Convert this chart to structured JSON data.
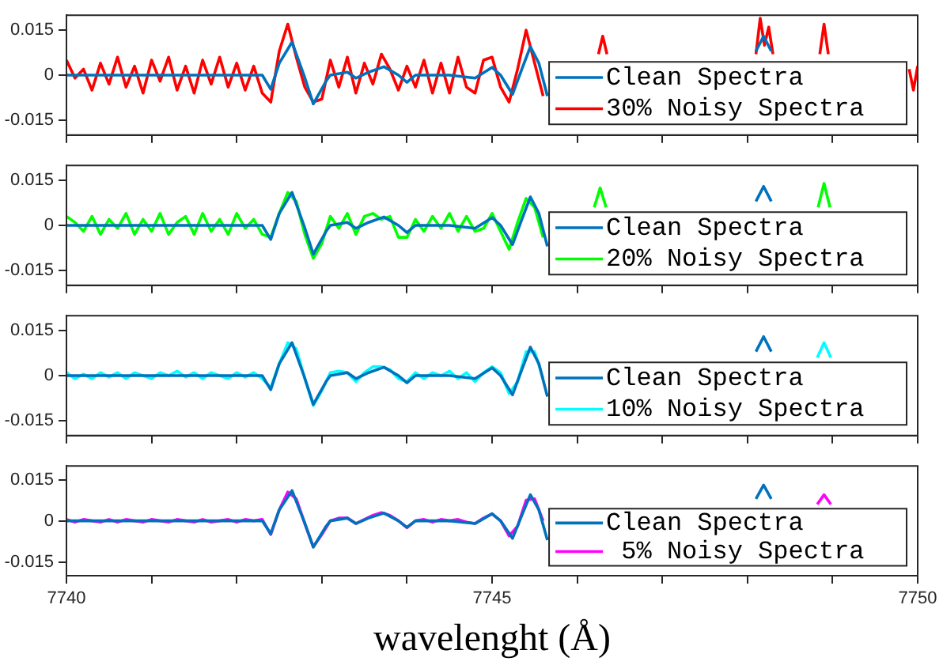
{
  "chart_data": [
    {
      "type": "line",
      "xlim": [
        7740,
        7750
      ],
      "xticks": [
        7740,
        {
          "value": 7741,
          "label": null
        },
        {
          "value": 7742,
          "label": null
        },
        {
          "value": 7743,
          "label": null
        },
        {
          "value": 7744,
          "label": null
        },
        7745,
        {
          "value": 7746,
          "label": null
        },
        {
          "value": 7747,
          "label": null
        },
        {
          "value": 7748,
          "label": null
        },
        {
          "value": 7749,
          "label": null
        },
        7750
      ],
      "ylim": [
        -0.02,
        0.02
      ],
      "yticks": [
        -0.015,
        0,
        0.015
      ],
      "tick_labels": "y",
      "legend": "right",
      "grid": false,
      "marker": "none",
      "line_style": "solid",
      "series": [
        {
          "name": "Clean Spectra",
          "color": "#0072bd",
          "x": [
            7740,
            7741,
            7742,
            7742.3,
            7742.4,
            7742.5,
            7742.65,
            7742.79,
            7742.9,
            7743.05,
            7743.1,
            7743.3,
            7743.4,
            7743.55,
            7743.73,
            7743.9,
            7744,
            7744.1,
            7744.5,
            7744.8,
            7745,
            7745.1,
            7745.24,
            7745.35,
            7745.45,
            7745.55,
            7745.65,
            7745.7,
            7748.1,
            7748.19,
            7748.28
          ],
          "values": [
            0,
            0,
            0,
            0,
            -0.0047,
            0.004,
            0.011,
            0,
            -0.0096,
            -0.002,
            0,
            0.001,
            -0.001,
            0.001,
            0.0028,
            0,
            -0.0024,
            0,
            0,
            -0.001,
            0.0026,
            0,
            -0.0064,
            0.002,
            0.0095,
            0.004,
            -0.007,
            null,
            0.008,
            0.013,
            0.008
          ]
        },
        {
          "name": "30% Noisy Spectra",
          "color": "#ff0000",
          "x": [
            7740,
            7740.1,
            7740.2,
            7740.3,
            7740.4,
            7740.5,
            7740.6,
            7740.7,
            7740.8,
            7740.9,
            7741,
            7741.1,
            7741.2,
            7741.3,
            7741.4,
            7741.5,
            7741.6,
            7741.7,
            7741.8,
            7741.9,
            7742,
            7742.1,
            7742.2,
            7742.3,
            7742.4,
            7742.5,
            7742.6,
            7742.7,
            7742.8,
            7742.9,
            7743,
            7743.1,
            7743.2,
            7743.3,
            7743.4,
            7743.5,
            7743.6,
            7743.7,
            7743.8,
            7743.9,
            7744,
            7744.1,
            7744.2,
            7744.3,
            7744.4,
            7744.5,
            7744.6,
            7744.7,
            7744.8,
            7744.9,
            7745,
            7745.1,
            7745.2,
            7745.3,
            7745.4,
            7745.5,
            7745.6,
            7745.7,
            7746.25,
            7746.3,
            7746.35,
            7746.4,
            7748.1,
            7748.15,
            7748.2,
            7748.25,
            7748.3,
            7748.4,
            7748.85,
            7748.9,
            7748.95,
            7749,
            7749.9,
            7749.95,
            7750
          ],
          "values": [
            0.005,
            -0.001,
            0.002,
            -0.005,
            0.004,
            -0.003,
            0.006,
            -0.004,
            0.003,
            -0.006,
            0.005,
            -0.002,
            0.006,
            -0.005,
            0.003,
            -0.006,
            0.005,
            -0.003,
            0.006,
            -0.004,
            0.004,
            -0.005,
            0.003,
            -0.006,
            -0.009,
            0.008,
            0.017,
            0.006,
            -0.004,
            -0.009,
            -0.008,
            0.005,
            -0.004,
            0.006,
            -0.006,
            0.004,
            -0.003,
            0.007,
            0.002,
            -0.005,
            0.003,
            -0.004,
            0.005,
            -0.006,
            0.004,
            -0.006,
            0.006,
            -0.004,
            -0.006,
            0.005,
            0.006,
            -0.004,
            -0.009,
            0.002,
            0.015,
            0.004,
            -0.007,
            null,
            0.007,
            0.013,
            0.007,
            null,
            0.007,
            0.019,
            0.01,
            0.016,
            0.007,
            null,
            0.007,
            0.017,
            0.007,
            null,
            0.002,
            -0.005,
            0.003
          ]
        }
      ]
    },
    {
      "type": "line",
      "xlim": [
        7740,
        7750
      ],
      "xticks": [
        7740,
        {
          "value": 7741,
          "label": null
        },
        {
          "value": 7742,
          "label": null
        },
        {
          "value": 7743,
          "label": null
        },
        {
          "value": 7744,
          "label": null
        },
        7745,
        {
          "value": 7746,
          "label": null
        },
        {
          "value": 7747,
          "label": null
        },
        {
          "value": 7748,
          "label": null
        },
        {
          "value": 7749,
          "label": null
        },
        7750
      ],
      "ylim": [
        -0.02,
        0.02
      ],
      "yticks": [
        -0.015,
        0,
        0.015
      ],
      "tick_labels": "y",
      "legend": "right",
      "grid": false,
      "marker": "none",
      "line_style": "solid",
      "series": [
        {
          "name": "Clean Spectra",
          "color": "#0072bd",
          "x": [
            7740,
            7741,
            7742,
            7742.3,
            7742.4,
            7742.5,
            7742.65,
            7742.79,
            7742.9,
            7743.05,
            7743.1,
            7743.3,
            7743.4,
            7743.55,
            7743.73,
            7743.9,
            7744,
            7744.1,
            7744.5,
            7744.8,
            7745,
            7745.1,
            7745.24,
            7745.35,
            7745.45,
            7745.55,
            7745.65,
            7745.7,
            7748.1,
            7748.19,
            7748.28
          ],
          "values": [
            0,
            0,
            0,
            0,
            -0.0047,
            0.004,
            0.011,
            0,
            -0.0096,
            -0.002,
            0,
            0.001,
            -0.001,
            0.001,
            0.0028,
            0,
            -0.0024,
            0,
            0,
            -0.001,
            0.0026,
            0,
            -0.0064,
            0.002,
            0.0095,
            0.004,
            -0.007,
            null,
            0.008,
            0.013,
            0.008
          ]
        },
        {
          "name": "20% Noisy Spectra",
          "color": "#00ff00",
          "x": [
            7740,
            7740.1,
            7740.2,
            7740.3,
            7740.4,
            7740.5,
            7740.6,
            7740.7,
            7740.8,
            7740.9,
            7741,
            7741.1,
            7741.2,
            7741.3,
            7741.4,
            7741.5,
            7741.6,
            7741.7,
            7741.8,
            7741.9,
            7742,
            7742.1,
            7742.2,
            7742.3,
            7742.4,
            7742.5,
            7742.6,
            7742.7,
            7742.8,
            7742.9,
            7743,
            7743.1,
            7743.2,
            7743.3,
            7743.4,
            7743.5,
            7743.6,
            7743.7,
            7743.8,
            7743.9,
            7744,
            7744.1,
            7744.2,
            7744.3,
            7744.4,
            7744.5,
            7744.6,
            7744.7,
            7744.8,
            7744.9,
            7745,
            7745.1,
            7745.2,
            7745.3,
            7745.4,
            7745.5,
            7745.6,
            7745.7,
            7746.2,
            7746.27,
            7746.34,
            7746.4,
            7748.83,
            7748.9,
            7748.97
          ],
          "values": [
            0.003,
            0.001,
            -0.002,
            0.003,
            -0.003,
            0.002,
            -0.001,
            0.004,
            -0.003,
            0.002,
            -0.002,
            0.004,
            -0.003,
            0.001,
            0.003,
            -0.003,
            0.004,
            -0.002,
            0.002,
            -0.003,
            0.004,
            -0.001,
            0.002,
            -0.003,
            -0.004,
            0.004,
            0.011,
            0.008,
            -0.003,
            -0.011,
            -0.006,
            0.003,
            -0.001,
            0.004,
            -0.003,
            0.003,
            0.004,
            0.002,
            0.003,
            -0.004,
            -0.004,
            0.002,
            -0.002,
            0.003,
            -0.001,
            0.004,
            -0.002,
            0.003,
            -0.002,
            -0.001,
            0.004,
            -0.002,
            -0.008,
            0.001,
            0.009,
            0.006,
            -0.004,
            null,
            0.006,
            0.0125,
            0.006,
            null,
            0.006,
            0.014,
            0.006
          ]
        }
      ]
    },
    {
      "type": "line",
      "xlim": [
        7740,
        7750
      ],
      "xticks": [
        7740,
        {
          "value": 7741,
          "label": null
        },
        {
          "value": 7742,
          "label": null
        },
        {
          "value": 7743,
          "label": null
        },
        {
          "value": 7744,
          "label": null
        },
        7745,
        {
          "value": 7746,
          "label": null
        },
        {
          "value": 7747,
          "label": null
        },
        {
          "value": 7748,
          "label": null
        },
        {
          "value": 7749,
          "label": null
        },
        7750
      ],
      "ylim": [
        -0.02,
        0.02
      ],
      "yticks": [
        -0.015,
        0,
        0.015
      ],
      "tick_labels": "y",
      "legend": "right",
      "grid": false,
      "marker": "none",
      "line_style": "solid",
      "series": [
        {
          "name": "Clean Spectra",
          "color": "#0072bd",
          "x": [
            7740,
            7741,
            7742,
            7742.3,
            7742.4,
            7742.5,
            7742.65,
            7742.79,
            7742.9,
            7743.05,
            7743.1,
            7743.3,
            7743.4,
            7743.55,
            7743.73,
            7743.9,
            7744,
            7744.1,
            7744.5,
            7744.8,
            7745,
            7745.1,
            7745.24,
            7745.35,
            7745.45,
            7745.55,
            7745.65,
            7745.7,
            7748.1,
            7748.19,
            7748.28
          ],
          "values": [
            0,
            0,
            0,
            0,
            -0.0047,
            0.004,
            0.011,
            0,
            -0.0096,
            -0.002,
            0,
            0.001,
            -0.001,
            0.001,
            0.0028,
            0,
            -0.0024,
            0,
            0,
            -0.001,
            0.0026,
            0,
            -0.0064,
            0.002,
            0.0095,
            0.004,
            -0.007,
            null,
            0.008,
            0.013,
            0.008
          ]
        },
        {
          "name": "10% Noisy Spectra",
          "color": "#00ffff",
          "x": [
            7740,
            7740.1,
            7740.2,
            7740.3,
            7740.4,
            7740.5,
            7740.6,
            7740.7,
            7740.8,
            7740.9,
            7741,
            7741.1,
            7741.2,
            7741.3,
            7741.4,
            7741.5,
            7741.6,
            7741.7,
            7741.8,
            7741.9,
            7742,
            7742.1,
            7742.2,
            7742.3,
            7742.4,
            7742.5,
            7742.6,
            7742.7,
            7742.8,
            7742.9,
            7743,
            7743.1,
            7743.2,
            7743.3,
            7743.4,
            7743.5,
            7743.6,
            7743.7,
            7743.8,
            7743.9,
            7744,
            7744.1,
            7744.2,
            7744.3,
            7744.4,
            7744.5,
            7744.6,
            7744.7,
            7744.8,
            7744.9,
            7745,
            7745.1,
            7745.2,
            7745.3,
            7745.4,
            7745.5,
            7745.6,
            7745.7,
            7748.82,
            7748.9,
            7748.98
          ],
          "values": [
            0.001,
            -0.001,
            0.0005,
            -0.001,
            0.001,
            -0.0005,
            0.001,
            -0.001,
            0.001,
            0,
            -0.001,
            0.001,
            0,
            0.0015,
            -0.0005,
            0.001,
            -0.001,
            0.001,
            0,
            -0.001,
            0.001,
            -0.0005,
            0.001,
            -0.001,
            -0.004,
            0.004,
            0.011,
            0.009,
            -0.001,
            -0.01,
            -0.005,
            0.001,
            0.0015,
            0.001,
            -0.002,
            0.001,
            0.003,
            0.003,
            0.002,
            -0.001,
            -0.002,
            0.001,
            -0.001,
            0.001,
            0,
            0.0015,
            -0.001,
            0.001,
            -0.002,
            0.001,
            0.003,
            0.001,
            -0.006,
            -0.002,
            0.008,
            0.008,
            -0.001,
            null,
            0.006,
            0.011,
            0.006
          ]
        }
      ]
    },
    {
      "type": "line",
      "xlim": [
        7740,
        7750
      ],
      "xticks": [
        7740,
        {
          "value": 7741,
          "label": null
        },
        {
          "value": 7742,
          "label": null
        },
        {
          "value": 7743,
          "label": null
        },
        {
          "value": 7744,
          "label": null
        },
        7745,
        {
          "value": 7746,
          "label": null
        },
        {
          "value": 7747,
          "label": null
        },
        {
          "value": 7748,
          "label": null
        },
        {
          "value": 7749,
          "label": null
        },
        7750
      ],
      "ylim": [
        -0.02,
        0.02
      ],
      "yticks": [
        -0.015,
        0,
        0.015
      ],
      "xlabel": "wavelenght (Å)",
      "legend": "right",
      "grid": false,
      "marker": "none",
      "line_style": "solid",
      "series": [
        {
          "name": "Clean Spectra",
          "color": "#0072bd",
          "x": [
            7740,
            7741,
            7742,
            7742.3,
            7742.4,
            7742.5,
            7742.65,
            7742.79,
            7742.9,
            7743.05,
            7743.1,
            7743.3,
            7743.4,
            7743.55,
            7743.73,
            7743.9,
            7744,
            7744.1,
            7744.5,
            7744.8,
            7745,
            7745.1,
            7745.24,
            7745.35,
            7745.45,
            7745.55,
            7745.65,
            7745.7,
            7748.1,
            7748.19,
            7748.28
          ],
          "values": [
            0,
            0,
            0,
            0,
            -0.0047,
            0.004,
            0.011,
            0,
            -0.0096,
            -0.002,
            0,
            0.001,
            -0.001,
            0.001,
            0.0028,
            0,
            -0.0024,
            0,
            0,
            -0.001,
            0.0026,
            0,
            -0.0064,
            0.002,
            0.0095,
            0.004,
            -0.007,
            null,
            0.008,
            0.013,
            0.008
          ]
        },
        {
          "name": " 5% Noisy Spectra",
          "color": "#ff00ff",
          "x": [
            7740,
            7740.1,
            7740.2,
            7740.3,
            7740.4,
            7740.5,
            7740.6,
            7740.7,
            7740.8,
            7740.9,
            7741,
            7741.1,
            7741.2,
            7741.3,
            7741.4,
            7741.5,
            7741.6,
            7741.7,
            7741.8,
            7741.9,
            7742,
            7742.1,
            7742.2,
            7742.3,
            7742.4,
            7742.5,
            7742.6,
            7742.7,
            7742.8,
            7742.9,
            7743,
            7743.1,
            7743.2,
            7743.3,
            7743.4,
            7743.5,
            7743.6,
            7743.7,
            7743.8,
            7743.9,
            7744,
            7744.1,
            7744.2,
            7744.3,
            7744.4,
            7744.5,
            7744.6,
            7744.7,
            7744.8,
            7744.9,
            7745,
            7745.1,
            7745.2,
            7745.3,
            7745.4,
            7745.5,
            7745.6,
            7745.7,
            7748.82,
            7748.9,
            7748.98
          ],
          "values": [
            0.0005,
            -0.0005,
            0.0005,
            0,
            -0.0005,
            0.0005,
            -0.0005,
            0.0005,
            0,
            -0.0005,
            0.0005,
            0,
            -0.0005,
            0.0005,
            0,
            -0.0005,
            0.0005,
            -0.0005,
            0,
            0.0005,
            -0.0005,
            0.0005,
            0,
            0.0005,
            -0.005,
            0.004,
            0.0105,
            0.008,
            -0.001,
            -0.0095,
            -0.005,
            0,
            0.001,
            0.001,
            -0.001,
            0.0005,
            0.002,
            0.003,
            0.002,
            0,
            -0.0025,
            0,
            0.0005,
            -0.0005,
            0.0005,
            0,
            0.0005,
            -0.0005,
            -0.001,
            0.001,
            0.0025,
            0,
            -0.0055,
            -0.002,
            0.0075,
            0.008,
            0,
            null,
            0.006,
            0.0095,
            0.006
          ]
        }
      ]
    }
  ]
}
